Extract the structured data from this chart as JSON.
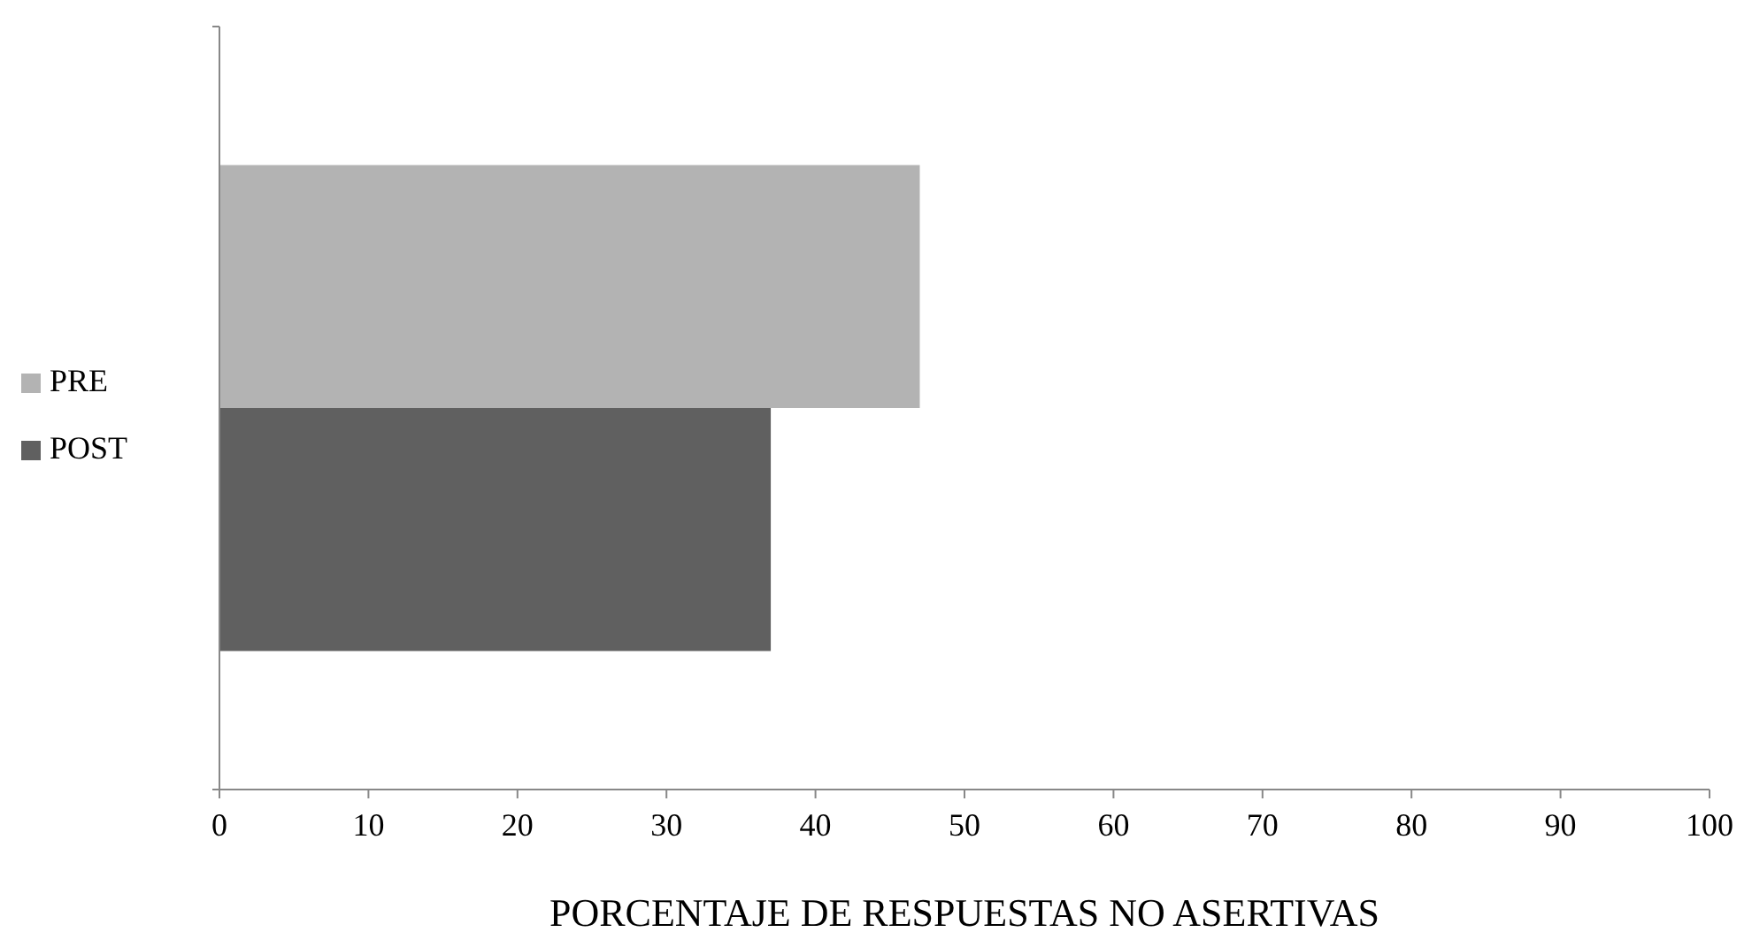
{
  "chart_data": {
    "type": "bar",
    "orientation": "horizontal",
    "xlabel": "PORCENTAJE DE RESPUESTAS NO ASERTIVAS",
    "categories": [
      null
    ],
    "series": [
      {
        "name": "PRE",
        "color": "#b3b3b3",
        "values": [
          47
        ]
      },
      {
        "name": "POST",
        "color": "#606060",
        "values": [
          37
        ]
      }
    ],
    "xlim": [
      0,
      100
    ],
    "xticks": [
      0,
      10,
      20,
      30,
      40,
      50,
      60,
      70,
      80,
      90,
      100
    ],
    "legend": "left",
    "grid": false
  }
}
